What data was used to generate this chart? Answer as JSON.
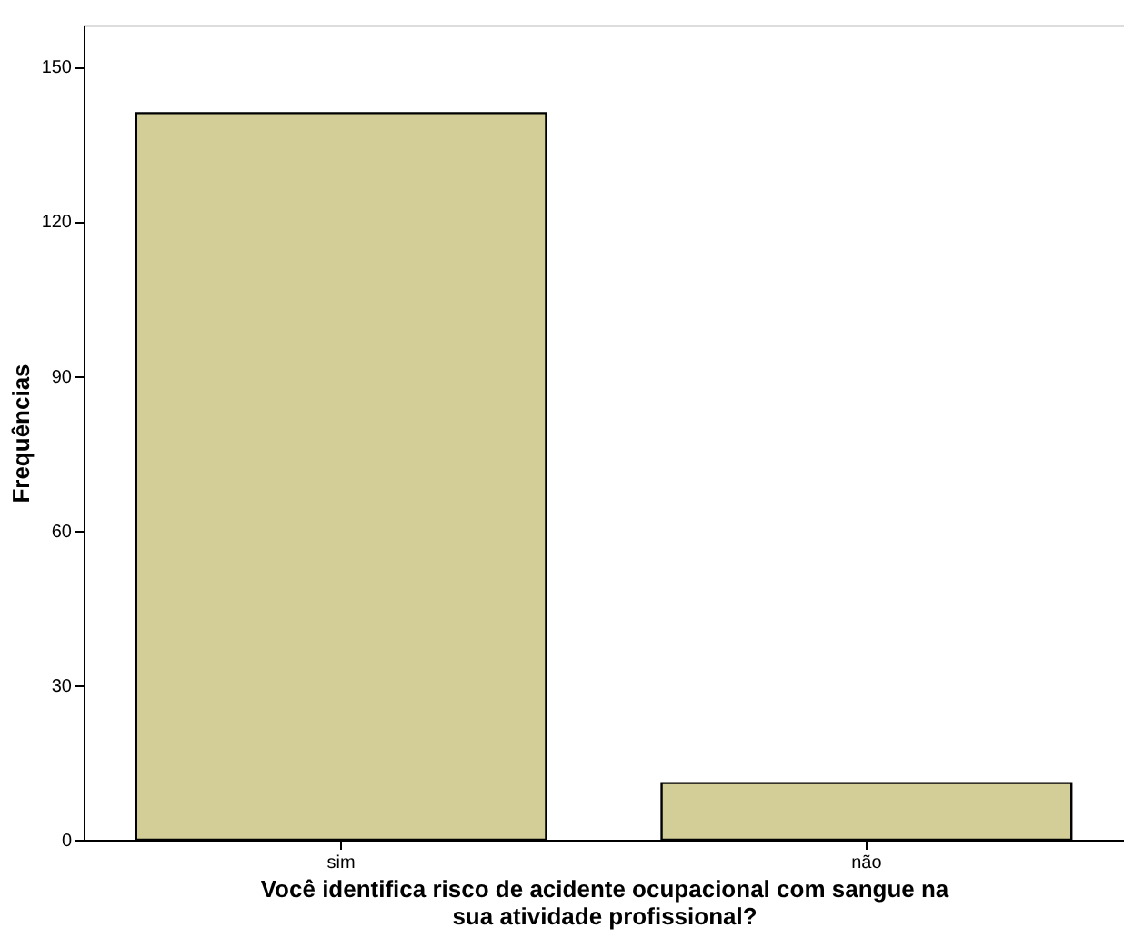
{
  "chart_data": {
    "type": "bar",
    "categories": [
      "sim",
      "não"
    ],
    "values": [
      141,
      11
    ],
    "color": "#d3ce97",
    "xlabel": "Você identifica risco de acidente ocupacional com sangue na sua atividade profissional?",
    "ylabel": "Frequências",
    "ylim": [
      0,
      158
    ],
    "yticks": [
      0,
      30,
      60,
      90,
      120,
      150
    ],
    "grid": false
  }
}
